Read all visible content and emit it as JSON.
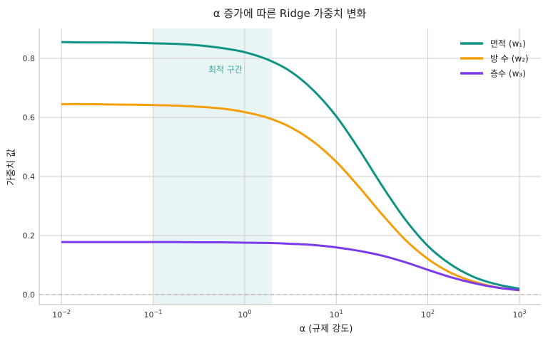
{
  "chart_data": {
    "type": "line",
    "title": "α 증가에 따른 Ridge 가중치 변화",
    "xlabel": "α (규제 강도)",
    "ylabel": "가중치 값",
    "xscale": "log",
    "xlim": [
      0.01,
      1000
    ],
    "ylim": [
      -0.03,
      0.9
    ],
    "xticks": [
      {
        "v": 0.01,
        "base": "10",
        "exp": "−2"
      },
      {
        "v": 0.1,
        "base": "10",
        "exp": "−1"
      },
      {
        "v": 1,
        "base": "10",
        "exp": "0"
      },
      {
        "v": 10,
        "base": "10",
        "exp": "1"
      },
      {
        "v": 100,
        "base": "10",
        "exp": "2"
      },
      {
        "v": 1000,
        "base": "10",
        "exp": "3"
      }
    ],
    "yticks": [
      "0.0",
      "0.2",
      "0.4",
      "0.6",
      "0.8"
    ],
    "grid": true,
    "legend_position": "top-right",
    "x": [
      0.01,
      0.0178,
      0.0316,
      0.0562,
      0.1,
      0.178,
      0.316,
      0.562,
      1,
      1.78,
      3.16,
      5.62,
      10,
      17.8,
      31.6,
      56.2,
      100,
      178,
      316,
      562,
      1000
    ],
    "series": [
      {
        "name": "면적 (w₁)",
        "color": "#0e9384",
        "values": [
          0.855,
          0.854,
          0.854,
          0.853,
          0.851,
          0.849,
          0.844,
          0.835,
          0.821,
          0.796,
          0.756,
          0.692,
          0.604,
          0.491,
          0.369,
          0.256,
          0.165,
          0.102,
          0.06,
          0.035,
          0.02
        ]
      },
      {
        "name": "방 수 (w₂)",
        "color": "#f59e0b",
        "values": [
          0.645,
          0.645,
          0.644,
          0.643,
          0.642,
          0.64,
          0.636,
          0.63,
          0.618,
          0.599,
          0.567,
          0.518,
          0.45,
          0.364,
          0.272,
          0.187,
          0.121,
          0.074,
          0.044,
          0.025,
          0.014
        ]
      },
      {
        "name": "층수 (w₃)",
        "color": "#7c3aed",
        "values": [
          0.178,
          0.178,
          0.178,
          0.178,
          0.178,
          0.178,
          0.177,
          0.177,
          0.176,
          0.175,
          0.172,
          0.168,
          0.16,
          0.148,
          0.132,
          0.11,
          0.084,
          0.059,
          0.039,
          0.024,
          0.015
        ]
      }
    ],
    "shaded_region": {
      "x_range": [
        0.1,
        2
      ],
      "label": "최적 구간",
      "color": "#0e9384"
    },
    "reference_line": {
      "y": 0,
      "style": "dashed"
    }
  }
}
